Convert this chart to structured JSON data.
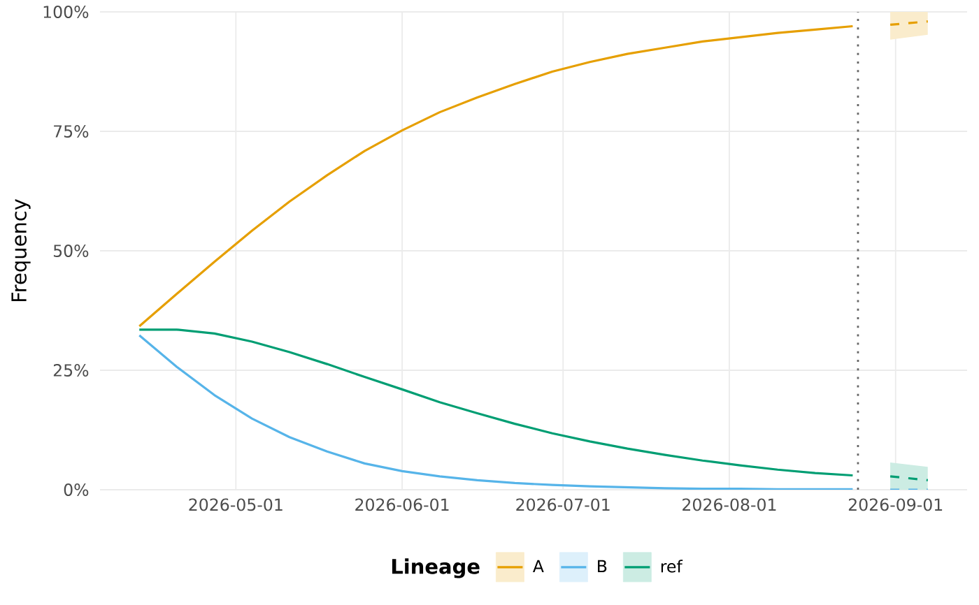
{
  "chart_data": {
    "type": "line",
    "ylabel": "Frequency",
    "legend_title": "Lineage",
    "x": [
      "2026-04-13",
      "2026-04-20",
      "2026-04-27",
      "2026-05-04",
      "2026-05-11",
      "2026-05-18",
      "2026-05-25",
      "2026-06-01",
      "2026-06-08",
      "2026-06-15",
      "2026-06-22",
      "2026-06-29",
      "2026-07-06",
      "2026-07-13",
      "2026-07-20",
      "2026-07-27",
      "2026-08-03",
      "2026-08-10",
      "2026-08-17",
      "2026-08-24"
    ],
    "series": [
      {
        "name": "A",
        "color": "#e69f00",
        "values": [
          34.2,
          41.0,
          47.7,
          54.2,
          60.3,
          65.8,
          70.9,
          75.2,
          79.0,
          82.1,
          84.9,
          87.5,
          89.5,
          91.2,
          92.5,
          93.8,
          94.7,
          95.6,
          96.3,
          97.0
        ]
      },
      {
        "name": "B",
        "color": "#56b4e9",
        "values": [
          32.3,
          25.7,
          19.8,
          14.9,
          11.0,
          8.0,
          5.5,
          3.9,
          2.8,
          2.0,
          1.4,
          1.0,
          0.7,
          0.5,
          0.3,
          0.2,
          0.2,
          0.1,
          0.1,
          0.1
        ]
      },
      {
        "name": "ref",
        "color": "#009e73",
        "values": [
          33.5,
          33.5,
          32.7,
          31.0,
          28.8,
          26.3,
          23.6,
          21.0,
          18.3,
          16.0,
          13.8,
          11.8,
          10.1,
          8.6,
          7.3,
          6.1,
          5.1,
          4.2,
          3.5,
          3.0
        ]
      },
      {
        "color": "#e69f00",
        "x": [
          "2026-08-31",
          "2026-09-07"
        ],
        "values": [
          97.3,
          98.0
        ],
        "lower": [
          94.2,
          95.2
        ],
        "upper": [
          100,
          100
        ],
        "line_style": "dashed"
      },
      {
        "color": "#56b4e9",
        "x": [
          "2026-08-31",
          "2026-09-07"
        ],
        "values": [
          0,
          0
        ],
        "line_style": "dashed"
      },
      {
        "color": "#009e73",
        "x": [
          "2026-08-31",
          "2026-09-07"
        ],
        "values": [
          2.8,
          2.0
        ],
        "lower": [
          0,
          0
        ],
        "upper": [
          5.7,
          4.8
        ],
        "line_style": "dashed"
      }
    ],
    "xlim": [
      "2026-04-05T16:00",
      "2026-09-14T08:00"
    ],
    "xticks": [
      "2026-05-01",
      "2026-06-01",
      "2026-07-01",
      "2026-08-01",
      "2026-09-01"
    ],
    "ylim": [
      0,
      100
    ],
    "yticks": [
      {
        "value": 0,
        "label": "0%"
      },
      {
        "value": 25,
        "label": "25%"
      },
      {
        "value": 50,
        "label": "50%"
      },
      {
        "value": 75,
        "label": "75%"
      },
      {
        "value": 100,
        "label": "100%"
      }
    ],
    "ref_lines": [
      {
        "axis": "x",
        "value": "2026-08-25",
        "color": "#666666",
        "line_style": "dotted"
      }
    ],
    "grid": true,
    "legend": "bottom",
    "line_style": "solid"
  }
}
